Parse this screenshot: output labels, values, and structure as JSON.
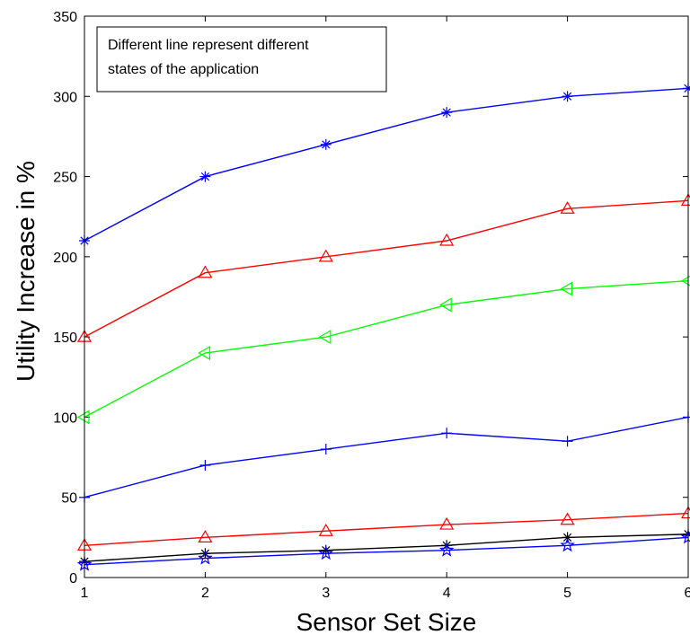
{
  "chart_data": {
    "type": "line",
    "title": "",
    "xlabel": "Sensor Set Size",
    "ylabel": "Utility Increase in %",
    "xlim": [
      1,
      6
    ],
    "ylim": [
      0,
      350
    ],
    "x": [
      1,
      2,
      3,
      4,
      5,
      6
    ],
    "xticks": [
      "1",
      "2",
      "3",
      "4",
      "5",
      "6"
    ],
    "yticks": [
      "0",
      "50",
      "100",
      "150",
      "200",
      "250",
      "300",
      "350"
    ],
    "grid": false,
    "annotation_lines": [
      "Different line represent different",
      "states of the application"
    ],
    "series": [
      {
        "marker": "asterisk",
        "color": "#0000ff",
        "values": [
          210,
          250,
          270,
          290,
          300,
          305
        ]
      },
      {
        "marker": "triangle-up",
        "color": "#ff0000",
        "values": [
          150,
          190,
          200,
          210,
          230,
          235
        ]
      },
      {
        "marker": "triangle-left",
        "color": "#00ff00",
        "values": [
          100,
          140,
          150,
          170,
          180,
          185
        ]
      },
      {
        "marker": "plus",
        "color": "#0000ff",
        "values": [
          50,
          70,
          80,
          90,
          85,
          100
        ]
      },
      {
        "marker": "triangle-up",
        "color": "#ff0000",
        "values": [
          20,
          25,
          29,
          33,
          36,
          40
        ]
      },
      {
        "marker": "asterisk",
        "color": "#000000",
        "values": [
          10,
          15,
          17,
          20,
          25,
          27
        ]
      },
      {
        "marker": "star",
        "color": "#0000ff",
        "values": [
          8,
          12,
          15,
          17,
          20,
          25
        ]
      }
    ]
  }
}
